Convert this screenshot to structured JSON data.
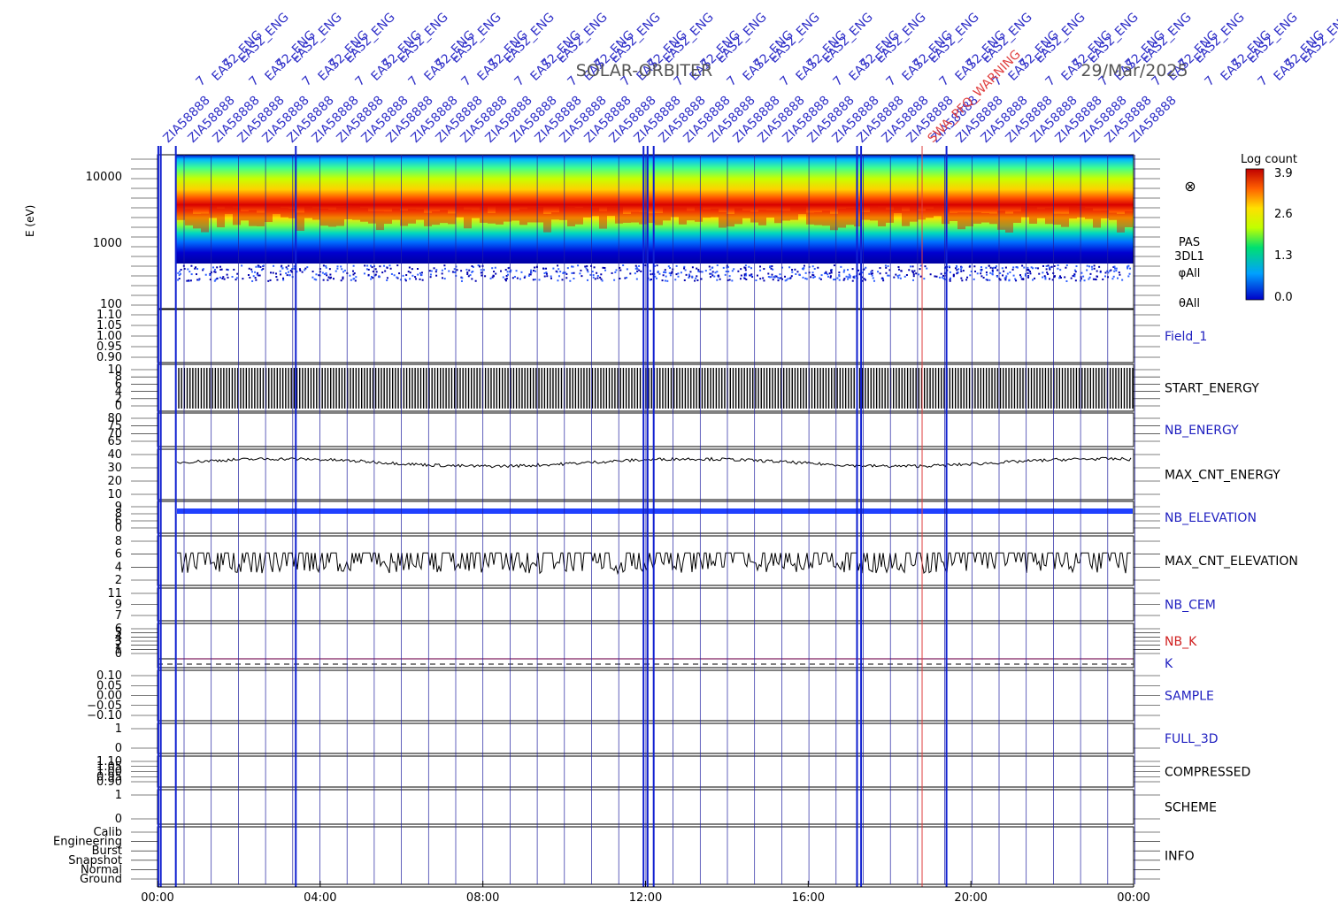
{
  "header": {
    "mission": "SOLAR-ORBITER",
    "date": "29/Mar/2025"
  },
  "annotations": {
    "eas_label": "EAS2_ENG",
    "zia_label": "ZIA58888",
    "seven": "7",
    "warning_text": "SWA_PFQ_WARNING",
    "eas_count": 42,
    "zia_count": 40
  },
  "colorbar": {
    "title": "Log count",
    "ticks": [
      "3.9",
      "2.6",
      "1.3",
      "0.0"
    ]
  },
  "spectrogram": {
    "ylabel": "E (eV)",
    "yticks": [
      "10000",
      "1000",
      "100"
    ],
    "right_labels": [
      "PAS",
      "3DL1",
      "φAll",
      "θAll"
    ],
    "symbol": "⊗"
  },
  "panels": [
    {
      "key": "field1",
      "label": "Field_1",
      "label_color": "#2020c0",
      "ticks": [
        "1.10",
        "1.05",
        "1.00",
        "0.95",
        "0.90"
      ]
    },
    {
      "key": "start_energy",
      "label": "START_ENERGY",
      "label_color": "#000000",
      "ticks": [
        "10",
        "8",
        "6",
        "4",
        "2",
        "0"
      ]
    },
    {
      "key": "nb_energy",
      "label": "NB_ENERGY",
      "label_color": "#2020c0",
      "ticks": [
        "80",
        "75",
        "70",
        "65"
      ]
    },
    {
      "key": "max_cnt_energy",
      "label": "MAX_CNT_ENERGY",
      "label_color": "#000000",
      "ticks": [
        "40",
        "30",
        "20",
        "10"
      ]
    },
    {
      "key": "nb_elevation",
      "label": "NB_ELEVATION",
      "label_color": "#2020c0",
      "ticks": [
        "9",
        "8",
        "6",
        "0"
      ]
    },
    {
      "key": "max_cnt_elevation",
      "label": "MAX_CNT_ELEVATION",
      "label_color": "#000000",
      "ticks": [
        "8",
        "6",
        "4",
        "2"
      ]
    },
    {
      "key": "nb_cem",
      "label": "NB_CEM",
      "label_color": "#2020c0",
      "ticks": [
        "11",
        "9",
        "7"
      ]
    },
    {
      "key": "nb_k",
      "label": "NB_K",
      "label_color": "#d02020",
      "ticks": [
        "6",
        "5",
        "4",
        "3",
        "2",
        "1",
        "0"
      ]
    },
    {
      "key": "k",
      "label": "K",
      "label_color": "#2020c0",
      "ticks": []
    },
    {
      "key": "sample",
      "label": "SAMPLE",
      "label_color": "#2020c0",
      "ticks": [
        "0.10",
        "0.05",
        "0.00",
        "−0.05",
        "−0.10"
      ]
    },
    {
      "key": "full_3d",
      "label": "FULL_3D",
      "label_color": "#2020c0",
      "ticks": [
        "1",
        "0"
      ]
    },
    {
      "key": "compressed",
      "label": "COMPRESSED",
      "label_color": "#000000",
      "ticks": [
        "1.10",
        "1.05",
        "1.00",
        "0.95",
        "0.90"
      ]
    },
    {
      "key": "scheme",
      "label": "SCHEME",
      "label_color": "#000000",
      "ticks": [
        "1",
        "0"
      ]
    },
    {
      "key": "info",
      "label": "INFO",
      "label_color": "#000000",
      "ticks": [
        "Calib",
        "Engineering",
        "Burst",
        "Snapshot",
        "Normal",
        "Ground"
      ]
    }
  ],
  "chart_data": {
    "type": "heatmap",
    "title": "SOLAR-ORBITER",
    "date": "29/Mar/2025",
    "x_ticks": [
      "00:00",
      "04:00",
      "08:00",
      "12:00",
      "16:00",
      "20:00",
      "00:00"
    ],
    "xlim": [
      "00:00",
      "24:00"
    ],
    "spectrogram": {
      "ylabel": "E (eV)",
      "yscale": "log",
      "ylim": [
        100,
        15000
      ],
      "colorbar_label": "Log count",
      "colorbar_range": [
        0.0,
        3.9
      ],
      "peak_energy_eV": 2000
    },
    "series": [
      {
        "name": "MAX_CNT_ENERGY",
        "typical_range": [
          30,
          40
        ]
      },
      {
        "name": "MAX_CNT_ELEVATION",
        "typical_range": [
          2,
          6
        ]
      },
      {
        "name": "NB_ELEVATION",
        "value": 9
      },
      {
        "name": "K",
        "value": 1
      }
    ],
    "event_times_hours": [
      0.02,
      0.08,
      0.45,
      3.4,
      11.95,
      12.05,
      12.2,
      17.2,
      17.3,
      18.8,
      19.4
    ],
    "warning_time_hours": 18.8
  }
}
